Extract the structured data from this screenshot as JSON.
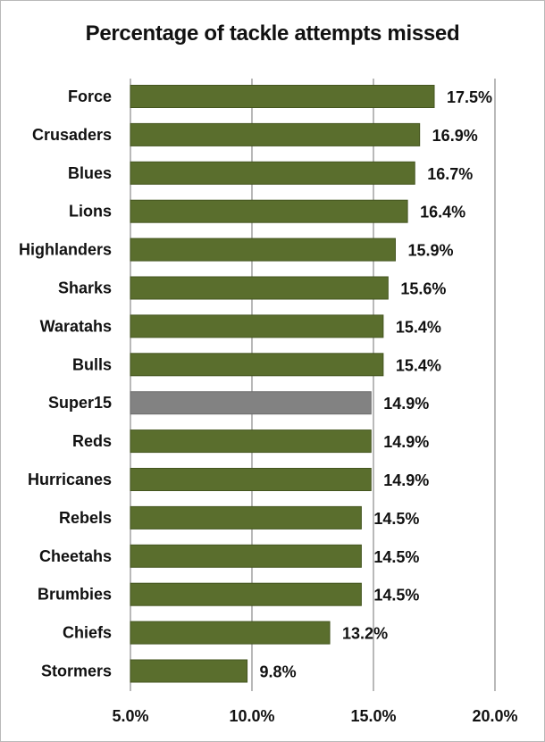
{
  "chart_data": {
    "type": "bar",
    "orientation": "horizontal",
    "title": "Percentage of tackle attempts missed",
    "xlabel": "",
    "ylabel": "",
    "xlim": [
      5.0,
      20.0
    ],
    "x_ticks": [
      5.0,
      10.0,
      15.0,
      20.0
    ],
    "x_tick_labels": [
      "5.0%",
      "10.0%",
      "15.0%",
      "20.0%"
    ],
    "grid": "vertical",
    "legend": "none",
    "categories": [
      "Force",
      "Crusaders",
      "Blues",
      "Lions",
      "Highlanders",
      "Sharks",
      "Waratahs",
      "Bulls",
      "Super15",
      "Reds",
      "Hurricanes",
      "Rebels",
      "Cheetahs",
      "Brumbies",
      "Chiefs",
      "Stormers"
    ],
    "values": [
      17.5,
      16.9,
      16.7,
      16.4,
      15.9,
      15.6,
      15.4,
      15.4,
      14.9,
      14.9,
      14.9,
      14.5,
      14.5,
      14.5,
      13.2,
      9.8
    ],
    "data_labels": [
      "17.5%",
      "16.9%",
      "16.7%",
      "16.4%",
      "15.9%",
      "15.6%",
      "15.4%",
      "15.4%",
      "14.9%",
      "14.9%",
      "14.9%",
      "14.5%",
      "14.5%",
      "14.5%",
      "13.2%",
      "9.8%"
    ],
    "highlight_category": "Super15",
    "colors": {
      "bar": "#5a6e2d",
      "bar_edge": "#44551f",
      "highlight": "#828282",
      "highlight_edge": "#6c6c6c",
      "grid": "#8a8a8a"
    }
  }
}
